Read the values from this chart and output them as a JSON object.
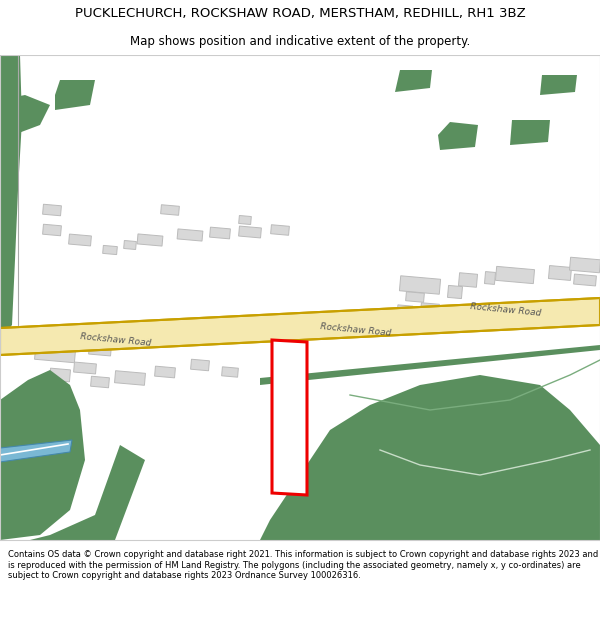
{
  "title_line1": "PUCKLECHURCH, ROCKSHAW ROAD, MERSTHAM, REDHILL, RH1 3BZ",
  "title_line2": "Map shows position and indicative extent of the property.",
  "footer_text": "Contains OS data © Crown copyright and database right 2021. This information is subject to Crown copyright and database rights 2023 and is reproduced with the permission of HM Land Registry. The polygons (including the associated geometry, namely x, y co-ordinates) are subject to Crown copyright and database rights 2023 Ordnance Survey 100026316.",
  "bg_color": "#ffffff",
  "road_outer_color": "#c8a000",
  "road_inner_color": "#f5e9b0",
  "green_color": "#5a8f5e",
  "building_color": "#d8d8d8",
  "building_edge": "#bbbbbb",
  "plot_edge": "#ee0000",
  "plot_linewidth": 2.0,
  "water_color": "#7ab8d4",
  "line_color": "#999999"
}
